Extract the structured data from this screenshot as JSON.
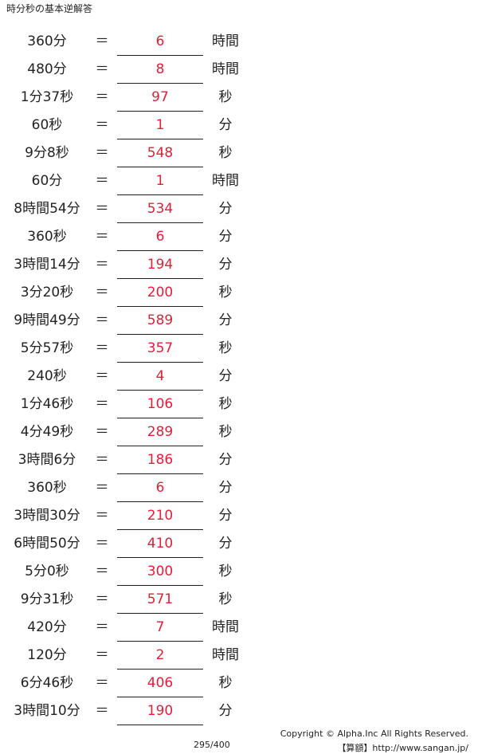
{
  "header": {
    "title": "時分秒の基本逆解答"
  },
  "rows": [
    {
      "left": "360分",
      "eq": "＝",
      "answer": 6,
      "unit": "時間"
    },
    {
      "left": "480分",
      "eq": "＝",
      "answer": 8,
      "unit": "時間"
    },
    {
      "left": "1分37秒",
      "eq": "＝",
      "answer": 97,
      "unit": "秒"
    },
    {
      "left": "60秒",
      "eq": "＝",
      "answer": 1,
      "unit": "分"
    },
    {
      "left": "9分8秒",
      "eq": "＝",
      "answer": 548,
      "unit": "秒"
    },
    {
      "left": "60分",
      "eq": "＝",
      "answer": 1,
      "unit": "時間"
    },
    {
      "left": "8時間54分",
      "eq": "＝",
      "answer": 534,
      "unit": "分"
    },
    {
      "left": "360秒",
      "eq": "＝",
      "answer": 6,
      "unit": "分"
    },
    {
      "left": "3時間14分",
      "eq": "＝",
      "answer": 194,
      "unit": "分"
    },
    {
      "left": "3分20秒",
      "eq": "＝",
      "answer": 200,
      "unit": "秒"
    },
    {
      "left": "9時間49分",
      "eq": "＝",
      "answer": 589,
      "unit": "分"
    },
    {
      "left": "5分57秒",
      "eq": "＝",
      "answer": 357,
      "unit": "秒"
    },
    {
      "left": "240秒",
      "eq": "＝",
      "answer": 4,
      "unit": "分"
    },
    {
      "left": "1分46秒",
      "eq": "＝",
      "answer": 106,
      "unit": "秒"
    },
    {
      "left": "4分49秒",
      "eq": "＝",
      "answer": 289,
      "unit": "秒"
    },
    {
      "left": "3時間6分",
      "eq": "＝",
      "answer": 186,
      "unit": "分"
    },
    {
      "left": "360秒",
      "eq": "＝",
      "answer": 6,
      "unit": "分"
    },
    {
      "left": "3時間30分",
      "eq": "＝",
      "answer": 210,
      "unit": "分"
    },
    {
      "left": "6時間50分",
      "eq": "＝",
      "answer": 410,
      "unit": "分"
    },
    {
      "left": "5分0秒",
      "eq": "＝",
      "answer": 300,
      "unit": "秒"
    },
    {
      "left": "9分31秒",
      "eq": "＝",
      "answer": 571,
      "unit": "秒"
    },
    {
      "left": "420分",
      "eq": "＝",
      "answer": 7,
      "unit": "時間"
    },
    {
      "left": "120分",
      "eq": "＝",
      "answer": 2,
      "unit": "時間"
    },
    {
      "left": "6分46秒",
      "eq": "＝",
      "answer": 406,
      "unit": "秒"
    },
    {
      "left": "3時間10分",
      "eq": "＝",
      "answer": 190,
      "unit": "分"
    }
  ],
  "footer": {
    "page": "295/400",
    "copyright": "Copyright © Alpha.Inc All Rights Reserved.",
    "site": "【算額】http://www.sangan.jp/"
  }
}
